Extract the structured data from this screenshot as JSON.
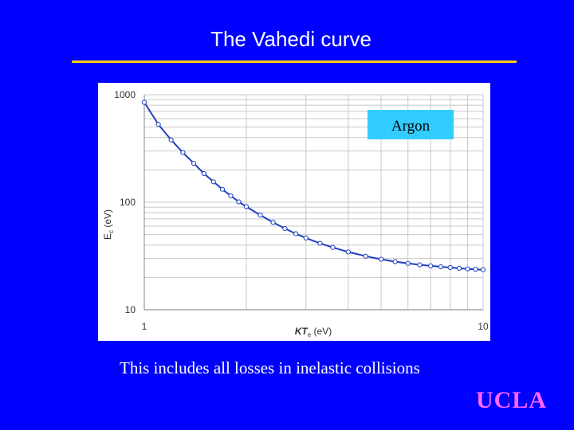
{
  "slide": {
    "title": "The Vahedi curve",
    "caption": "This includes all losses in inelastic collisions",
    "logo": "UCLA"
  },
  "colors": {
    "background": "#0000ff",
    "title_rule": "#ffcc00",
    "logo": "#ff66ff",
    "series": "#1f3fc0",
    "annotation_box": "#33ccff"
  },
  "chart_data": {
    "type": "line",
    "x_scale": "log",
    "y_scale": "log",
    "xlim": [
      1,
      10
    ],
    "ylim": [
      10,
      1000
    ],
    "x_ticks": [
      "1",
      "10"
    ],
    "y_ticks": [
      "1000",
      "100",
      "10"
    ],
    "xlabel": {
      "main": "KT",
      "sub": "e",
      "unit": " (eV)"
    },
    "ylabel": {
      "main": "E",
      "sub": "c",
      "unit": " (eV)"
    },
    "grid": true,
    "annotation": "Argon",
    "series": [
      {
        "markers": "open-circle",
        "x": [
          1.0,
          1.1,
          1.2,
          1.3,
          1.4,
          1.5,
          1.6,
          1.7,
          1.8,
          1.9,
          2.0,
          2.2,
          2.4,
          2.6,
          2.8,
          3.0,
          3.3,
          3.6,
          4.0,
          4.5,
          5.0,
          5.5,
          6.0,
          6.5,
          7.0,
          7.5,
          8.0,
          8.5,
          9.0,
          9.5,
          10.0
        ],
        "y": [
          850,
          530,
          380,
          290,
          230,
          185,
          155,
          132,
          115,
          101,
          91,
          76,
          65,
          57,
          51,
          46.5,
          41.5,
          38,
          34.5,
          31.5,
          29.5,
          28,
          27,
          26.2,
          25.6,
          25.1,
          24.7,
          24.3,
          24.0,
          23.8,
          23.6
        ]
      }
    ]
  }
}
